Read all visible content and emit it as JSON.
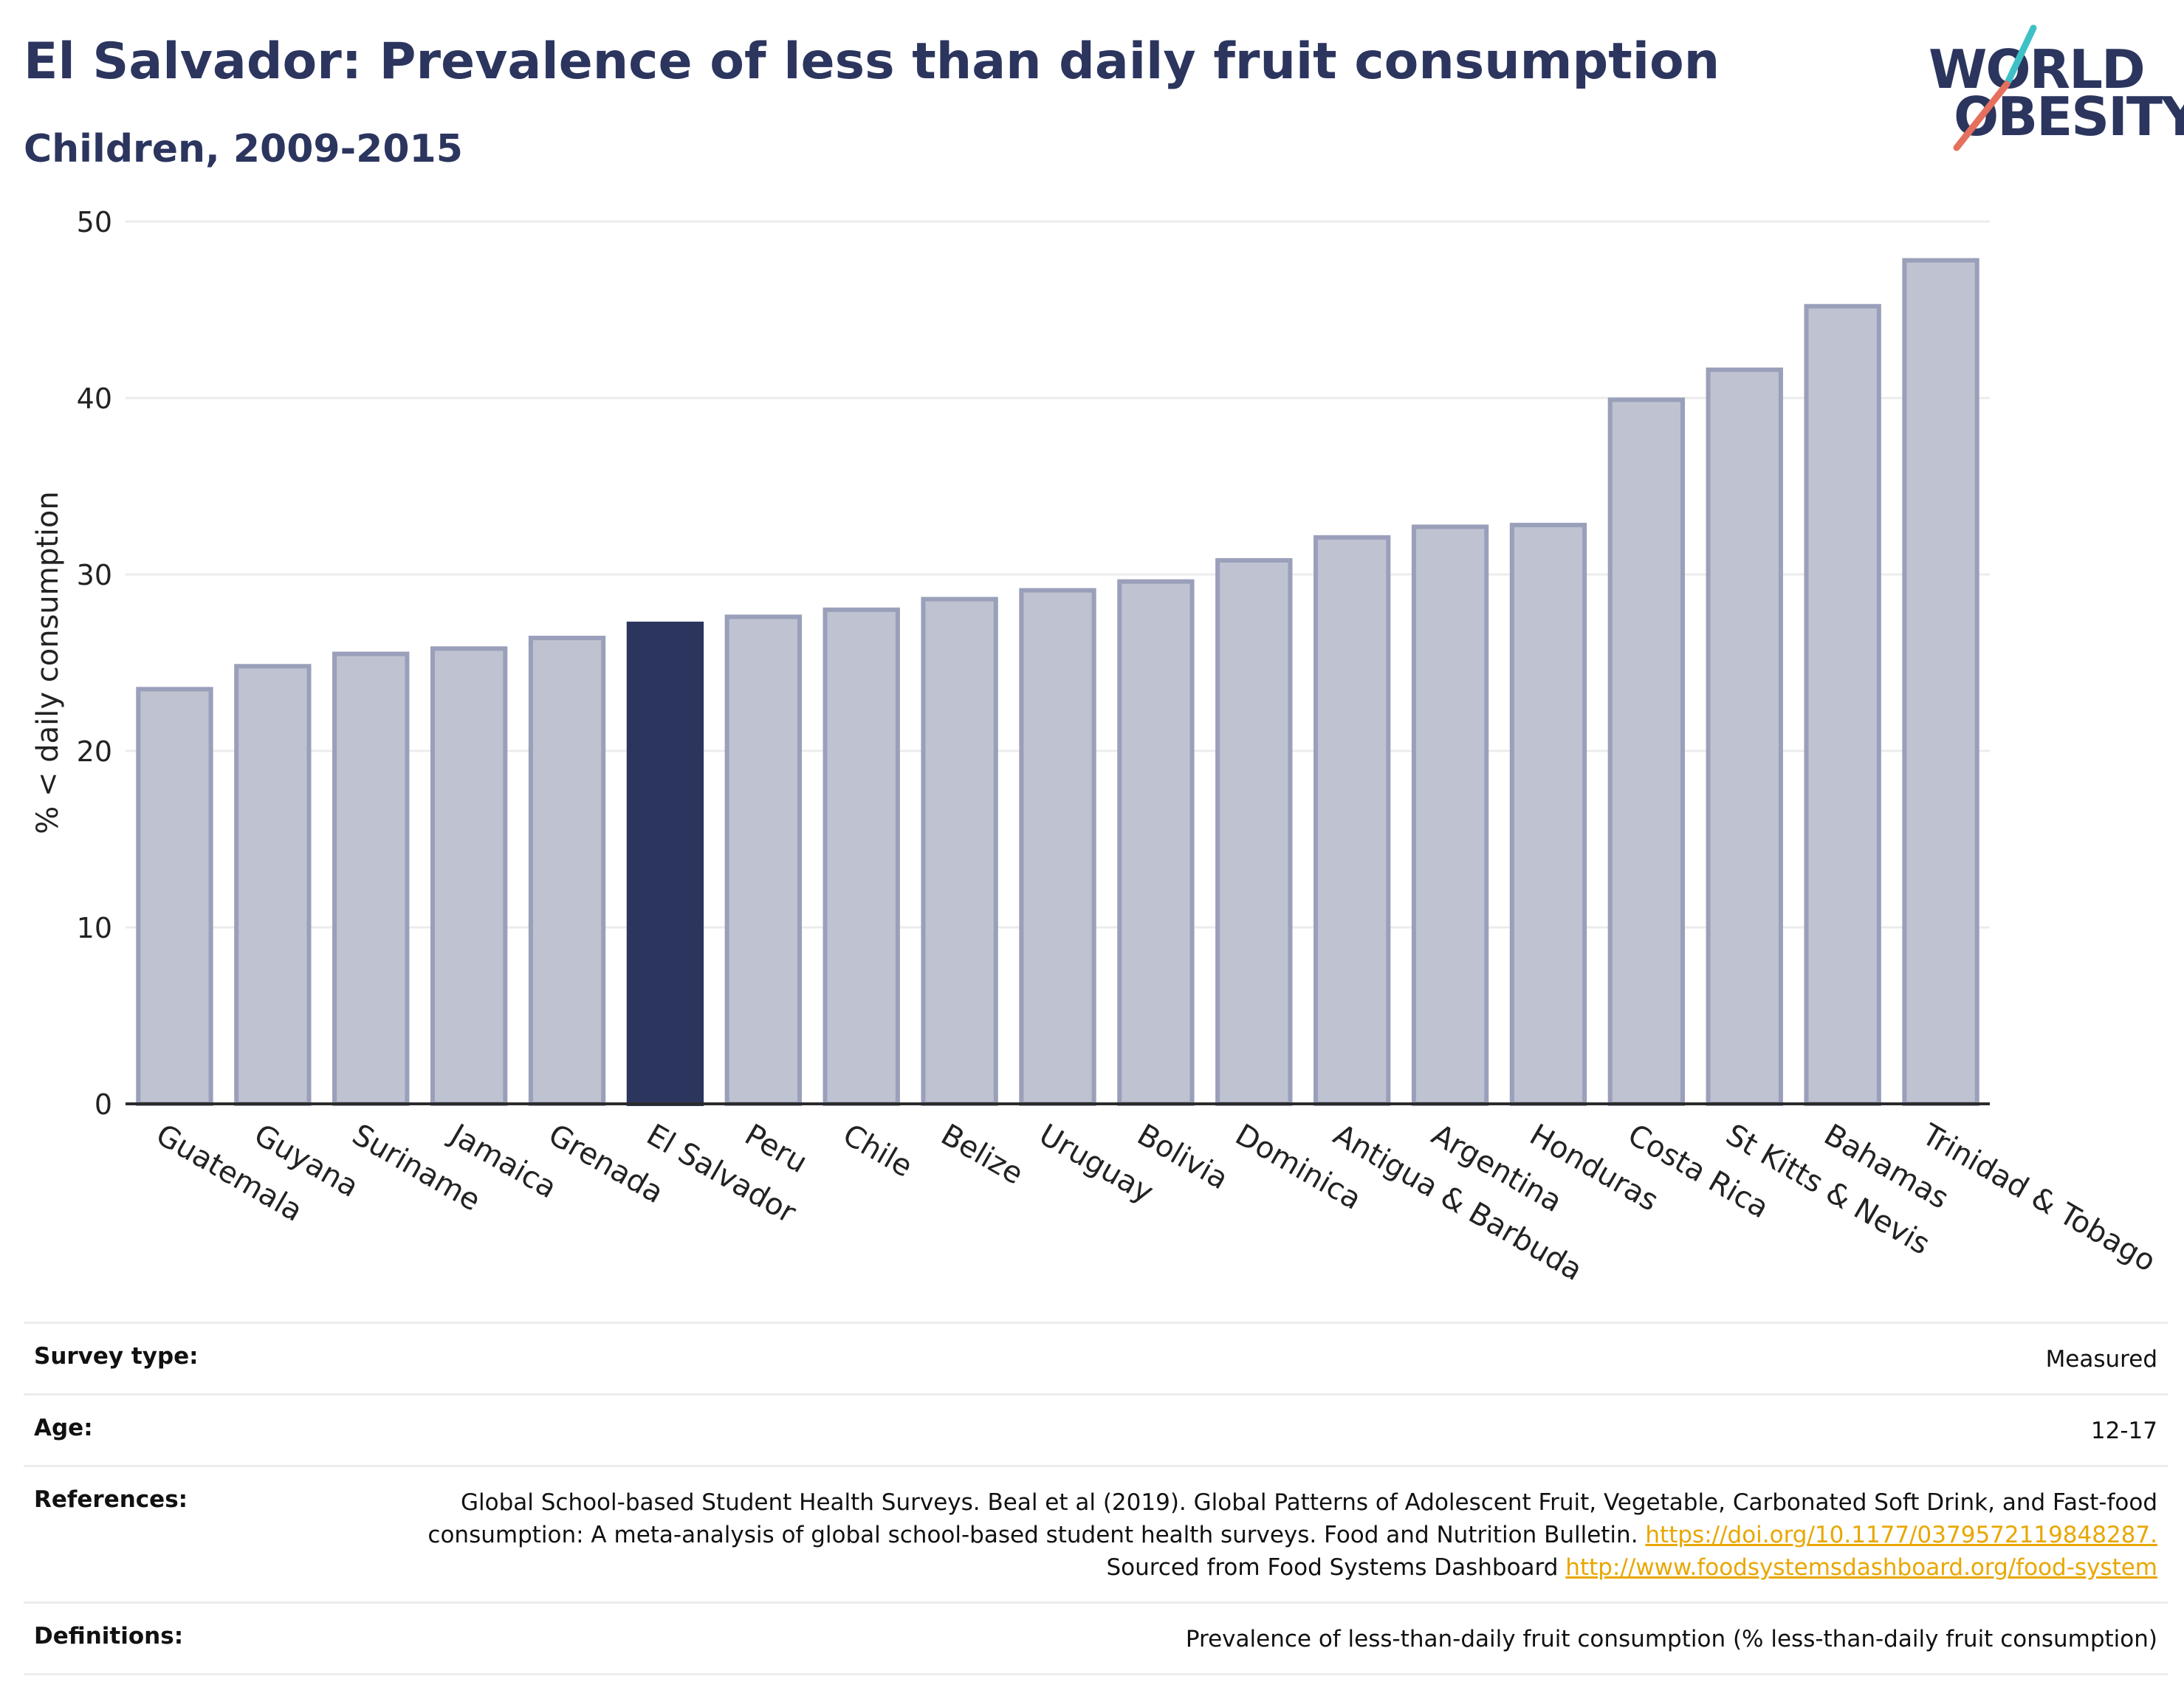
{
  "header": {
    "title": "El Salvador: Prevalence of less than daily fruit consumption",
    "subtitle": "Children, 2009-2015"
  },
  "logo": {
    "line1": "WORLD",
    "line2": "OBESITY",
    "slash_colors": [
      "#3ec1c6",
      "#e5705d"
    ],
    "text_color": "#2b355e"
  },
  "chart_data": {
    "type": "bar",
    "ylabel": "% < daily consumption",
    "ylim": [
      0,
      50
    ],
    "yticks": [
      0,
      10,
      20,
      30,
      40,
      50
    ],
    "grid": true,
    "highlight": "El Salvador",
    "colors": {
      "bar": "#bfc2d0",
      "bar_edge": "#9a9fba",
      "highlight": "#2b355e",
      "grid": "#ececec",
      "axis": "#2b2b2b"
    },
    "categories": [
      "Guatemala",
      "Guyana",
      "Suriname",
      "Jamaica",
      "Grenada",
      "El Salvador",
      "Peru",
      "Chile",
      "Belize",
      "Uruguay",
      "Bolivia",
      "Dominica",
      "Antigua & Barbuda",
      "Argentina",
      "Honduras",
      "Costa Rica",
      "St Kitts & Nevis",
      "Bahamas",
      "Trinidad & Tobago"
    ],
    "values": [
      23.5,
      24.8,
      25.5,
      25.8,
      26.4,
      27.2,
      27.6,
      28.0,
      28.6,
      29.1,
      29.6,
      30.8,
      32.1,
      32.7,
      32.8,
      39.9,
      41.6,
      45.2,
      47.8
    ]
  },
  "info": {
    "survey_type": {
      "label": "Survey type:",
      "value": "Measured"
    },
    "age": {
      "label": "Age:",
      "value": "12-17"
    },
    "references": {
      "label": "References:",
      "text1": "Global School-based Student Health Surveys. Beal et al (2019). Global Patterns of Adolescent Fruit, Vegetable, Carbonated Soft Drink, and Fast-food consumption: A meta-analysis of global school-based student health surveys. Food and Nutrition Bulletin.",
      "link1": "https://doi.org/10.1177/0379572119848287.",
      "text2": "Sourced from Food Systems Dashboard",
      "link2": "http://www.foodsystemsdashboard.org/food-system"
    },
    "definitions": {
      "label": "Definitions:",
      "value": "Prevalence of less-than-daily fruit consumption (% less-than-daily fruit consumption)"
    }
  }
}
